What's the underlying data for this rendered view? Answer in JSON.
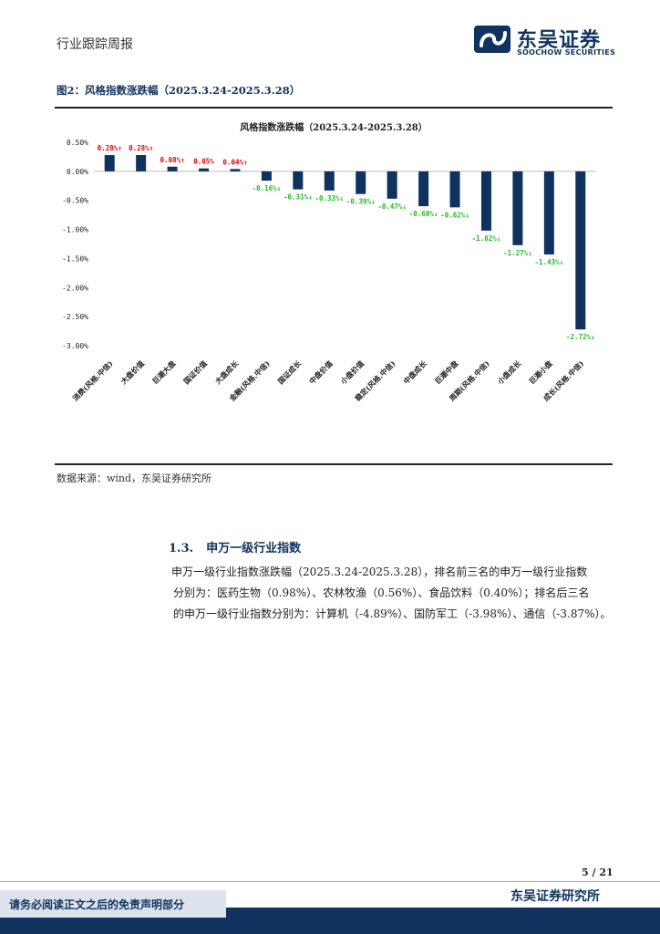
{
  "header": {
    "left": "行业跟踪周报",
    "logo_name": "东吴证券",
    "logo_en": "SOOCHOW SECURITIES"
  },
  "figure": {
    "caption": "图2：风格指数涨跌幅（2025.3.24-2025.3.28）",
    "source": "数据来源：wind，东吴证券研究所"
  },
  "chart_data": {
    "type": "bar",
    "title": "风格指数涨跌幅（2025.3.24-2025.3.28）",
    "categories": [
      "消费(风格.中信)",
      "大盘价值",
      "巨潮大盘",
      "国证价值",
      "大盘成长",
      "金融(风格.中信)",
      "国证成长",
      "中盘价值",
      "小盘价值",
      "稳定(风格.中信)",
      "中盘成长",
      "巨潮中盘",
      "周期(风格.中信)",
      "小盘成长",
      "巨潮小盘",
      "成长(风格.中信)"
    ],
    "values": [
      0.28,
      0.28,
      0.08,
      0.05,
      0.04,
      -0.16,
      -0.31,
      -0.33,
      -0.39,
      -0.47,
      -0.6,
      -0.62,
      -1.02,
      -1.27,
      -1.43,
      -2.72
    ],
    "data_labels": [
      "0.28%↑",
      "0.28%↑",
      "0.08%↑",
      "0.05%",
      "0.04%↑",
      "-0.16%↓",
      "-0.31%↓",
      "-0.33%↓",
      "-0.39%↓",
      "-0.47%↓",
      "-0.60%↓",
      "-0.62%↓",
      "-1.02%↓",
      "-1.27%↓",
      "-1.43%↓",
      "-2.72%↓"
    ],
    "ylim": [
      -3.0,
      0.5
    ],
    "yticks": [
      0.5,
      0.0,
      -0.5,
      -1.0,
      -1.5,
      -2.0,
      -2.5,
      -3.0
    ],
    "ytick_labels": [
      "0.50%",
      "0.00%",
      "-0.50%",
      "-1.00%",
      "-1.50%",
      "-2.00%",
      "-2.50%",
      "-3.00%"
    ],
    "xlabel": "",
    "ylabel": "",
    "grid": false,
    "bar_color": "#10325f",
    "positive_label_color": "#e00000",
    "negative_label_color": "#22bb22"
  },
  "section": {
    "number": "1.3.",
    "title": "申万一级行业指数",
    "line1": "申万一级行业指数涨跌幅（2025.3.24-2025.3.28），排名前三名的申万一级行业指数",
    "line2": "分别为：医药生物（0.98%）、农林牧渔（0.56%）、食品饮料（0.40%）；排名后三名",
    "line3": "的申万一级行业指数分别为：计算机（-4.89%）、国防军工（-3.98%）、通信（-3.87%）。"
  },
  "footer": {
    "page": "5 / 21",
    "org": "东吴证券研究所",
    "disclaimer": "请务必阅读正文之后的免责声明部分"
  },
  "colors": {
    "brand": "#10325f"
  }
}
